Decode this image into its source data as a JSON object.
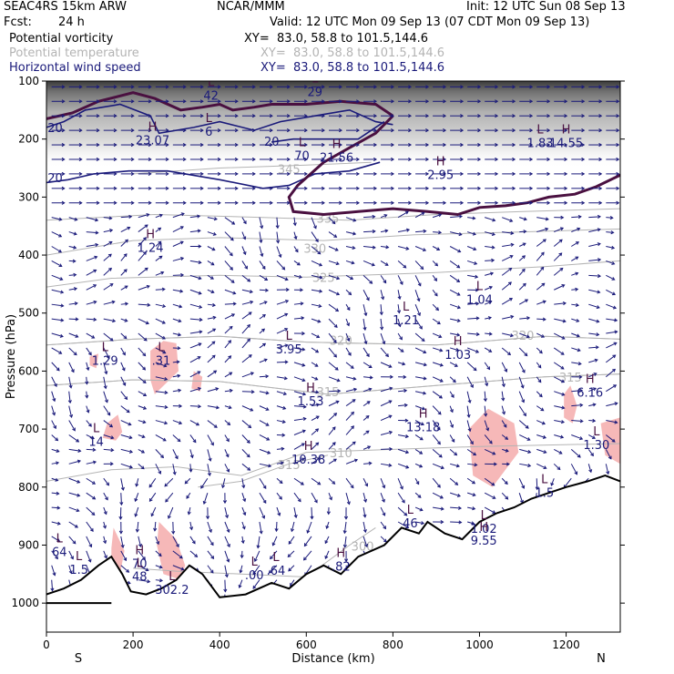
{
  "header": {
    "model": "SEAC4RS 15km ARW",
    "org": "NCAR/MMM",
    "init": "Init: 12 UTC Sun 08 Sep 13",
    "fcst_label": "Fcst:",
    "fcst_value": "24 h",
    "valid": "Valid: 12 UTC Mon 09 Sep 13 (07 CDT Mon 09 Sep 13)",
    "fields": [
      {
        "name": "Potential vorticity",
        "xy": "XY=  83.0, 58.8 to 101.5,144.6",
        "color": "#000000"
      },
      {
        "name": "Potential temperature",
        "xy": "XY=  83.0, 58.8 to 101.5,144.6",
        "color": "#b4b4b4"
      },
      {
        "name": "Horizontal wind speed",
        "xy": "XY=  83.0, 58.8 to 101.5,144.6",
        "color": "#1a1a7a"
      }
    ]
  },
  "chart_data": {
    "type": "cross-section",
    "xlabel": "Distance (km)",
    "ylabel": "Pressure (hPa)",
    "xlim": [
      0,
      1325
    ],
    "ylim": [
      1050,
      100
    ],
    "x_ticks": [
      "0",
      "200",
      "400",
      "600",
      "800",
      "1000",
      "1200"
    ],
    "y_ticks": [
      "100",
      "200",
      "300",
      "400",
      "500",
      "600",
      "700",
      "800",
      "900",
      "1000"
    ],
    "end_labels": {
      "left": "S",
      "right": "N"
    },
    "colors": {
      "wind": "#1a1a7a",
      "theta": "#b4b4b4",
      "pv_thick": "#4a1040",
      "pink": "#f6b8b8",
      "terrain": "#000000"
    },
    "theta_contours": [
      {
        "label": "330",
        "points": [
          [
            0,
            400
          ],
          [
            200,
            375
          ],
          [
            400,
            370
          ],
          [
            640,
            375
          ],
          [
            850,
            365
          ],
          [
            1100,
            360
          ],
          [
            1325,
            355
          ]
        ],
        "label_at": [
          620,
          390
        ]
      },
      {
        "label": "325",
        "points": [
          [
            0,
            455
          ],
          [
            150,
            440
          ],
          [
            400,
            435
          ],
          [
            600,
            438
          ],
          [
            900,
            430
          ],
          [
            1150,
            420
          ],
          [
            1325,
            410
          ]
        ],
        "label_at": [
          640,
          440
        ]
      },
      {
        "label": "320",
        "points": [
          [
            0,
            555
          ],
          [
            200,
            545
          ],
          [
            400,
            540
          ],
          [
            600,
            550
          ],
          [
            900,
            555
          ],
          [
            1150,
            540
          ],
          [
            1325,
            545
          ]
        ],
        "label_at": [
          1100,
          540
        ]
      },
      {
        "label": "320",
        "points": [
          [
            0,
            555
          ],
          [
            200,
            545
          ],
          [
            400,
            540
          ],
          [
            600,
            550
          ],
          [
            900,
            555
          ],
          [
            1150,
            540
          ],
          [
            1325,
            545
          ]
        ],
        "label_at": [
          680,
          548
        ]
      },
      {
        "label": "315",
        "points": [
          [
            0,
            625
          ],
          [
            200,
            615
          ],
          [
            400,
            618
          ],
          [
            650,
            640
          ],
          [
            900,
            625
          ],
          [
            1150,
            610
          ],
          [
            1325,
            605
          ]
        ],
        "label_at": [
          650,
          637
        ]
      },
      {
        "label": "315",
        "points": [
          [
            0,
            625
          ],
          [
            200,
            615
          ],
          [
            400,
            618
          ],
          [
            650,
            640
          ],
          [
            900,
            625
          ],
          [
            1150,
            610
          ],
          [
            1325,
            605
          ]
        ],
        "label_at": [
          1210,
          612
        ]
      },
      {
        "label": "310",
        "points": [
          [
            0,
            790
          ],
          [
            150,
            770
          ],
          [
            300,
            765
          ],
          [
            450,
            780
          ],
          [
            600,
            740
          ],
          [
            800,
            735
          ],
          [
            1000,
            730
          ],
          [
            1325,
            725
          ]
        ],
        "label_at": [
          680,
          742
        ]
      },
      {
        "label": "315",
        "points": [
          [
            350,
            800
          ],
          [
            450,
            790
          ],
          [
            560,
            760
          ],
          [
            650,
            745
          ]
        ],
        "label_at": [
          560,
          763
        ]
      },
      {
        "label": "345",
        "points": [
          [
            200,
            260
          ],
          [
            400,
            250
          ],
          [
            600,
            245
          ],
          [
            750,
            240
          ]
        ],
        "label_at": [
          560,
          253
        ]
      },
      {
        "label": "335",
        "points": [
          [
            0,
            340
          ],
          [
            250,
            330
          ],
          [
            500,
            335
          ],
          [
            700,
            340
          ],
          [
            900,
            330
          ],
          [
            1100,
            325
          ],
          [
            1325,
            320
          ]
        ],
        "label_at": [
          650,
          338
        ]
      },
      {
        "label": "300",
        "points": [
          [
            200,
            940
          ],
          [
            300,
            945
          ],
          [
            450,
            950
          ],
          [
            600,
            955
          ],
          [
            700,
            900
          ],
          [
            760,
            870
          ]
        ],
        "label_at": [
          730,
          903
        ]
      }
    ],
    "pv_contours": [
      {
        "label": "20",
        "points": [
          [
            0,
            180
          ],
          [
            40,
            170
          ],
          [
            90,
            150
          ],
          [
            170,
            140
          ],
          [
            240,
            160
          ],
          [
            260,
            190
          ],
          [
            340,
            180
          ],
          [
            400,
            170
          ],
          [
            480,
            185
          ],
          [
            540,
            170
          ],
          [
            620,
            160
          ],
          [
            700,
            150
          ],
          [
            760,
            170
          ],
          [
            800,
            175
          ]
        ],
        "label_at": [
          20,
          182
        ]
      },
      {
        "label": "20",
        "points": [
          [
            0,
            275
          ],
          [
            50,
            270
          ],
          [
            110,
            260
          ],
          [
            190,
            255
          ],
          [
            280,
            255
          ],
          [
            400,
            270
          ],
          [
            500,
            285
          ],
          [
            560,
            280
          ],
          [
            620,
            260
          ],
          [
            700,
            255
          ],
          [
            770,
            240
          ]
        ],
        "label_at": [
          20,
          268
        ]
      },
      {
        "label": "20",
        "points": [
          [
            520,
            205
          ],
          [
            570,
            200
          ],
          [
            640,
            200
          ],
          [
            720,
            200
          ],
          [
            780,
            170
          ]
        ],
        "label_at": [
          520,
          205
        ]
      }
    ],
    "pv_thick": [
      {
        "points": [
          [
            0,
            165
          ],
          [
            60,
            155
          ],
          [
            120,
            135
          ],
          [
            200,
            120
          ],
          [
            250,
            130
          ],
          [
            310,
            150
          ],
          [
            360,
            145
          ],
          [
            400,
            140
          ],
          [
            430,
            150
          ],
          [
            480,
            145
          ],
          [
            520,
            140
          ],
          [
            600,
            140
          ],
          [
            680,
            135
          ],
          [
            760,
            140
          ],
          [
            800,
            160
          ]
        ]
      },
      {
        "points": [
          [
            800,
            160
          ],
          [
            760,
            190
          ],
          [
            700,
            215
          ],
          [
            640,
            240
          ],
          [
            580,
            280
          ],
          [
            560,
            300
          ],
          [
            570,
            325
          ],
          [
            640,
            330
          ],
          [
            720,
            325
          ],
          [
            800,
            320
          ],
          [
            880,
            325
          ],
          [
            950,
            330
          ],
          [
            1000,
            318
          ],
          [
            1060,
            315
          ],
          [
            1110,
            310
          ],
          [
            1160,
            300
          ],
          [
            1220,
            295
          ],
          [
            1270,
            282
          ],
          [
            1325,
            262
          ]
        ]
      }
    ],
    "pink_regions": [
      [
        [
          240,
          565
        ],
        [
          270,
          548
        ],
        [
          300,
          552
        ],
        [
          305,
          600
        ],
        [
          250,
          640
        ],
        [
          240,
          615
        ]
      ],
      [
        [
          140,
          690
        ],
        [
          165,
          675
        ],
        [
          175,
          705
        ],
        [
          160,
          720
        ],
        [
          130,
          715
        ]
      ],
      [
        [
          975,
          700
        ],
        [
          1020,
          665
        ],
        [
          1080,
          690
        ],
        [
          1090,
          740
        ],
        [
          1030,
          800
        ],
        [
          985,
          780
        ]
      ],
      [
        [
          1195,
          640
        ],
        [
          1210,
          625
        ],
        [
          1225,
          660
        ],
        [
          1215,
          690
        ],
        [
          1195,
          680
        ]
      ],
      [
        [
          1280,
          690
        ],
        [
          1325,
          680
        ],
        [
          1325,
          760
        ],
        [
          1290,
          745
        ]
      ],
      [
        [
          260,
          860
        ],
        [
          300,
          890
        ],
        [
          320,
          935
        ],
        [
          310,
          960
        ],
        [
          270,
          950
        ],
        [
          255,
          900
        ]
      ],
      [
        [
          155,
          870
        ],
        [
          180,
          910
        ],
        [
          170,
          950
        ],
        [
          150,
          960
        ],
        [
          150,
          905
        ]
      ],
      [
        [
          340,
          600
        ],
        [
          360,
          610
        ],
        [
          355,
          635
        ],
        [
          335,
          630
        ]
      ],
      [
        [
          100,
          575
        ],
        [
          120,
          570
        ],
        [
          115,
          595
        ],
        [
          100,
          590
        ]
      ]
    ],
    "terrain": [
      [
        0,
        985
      ],
      [
        40,
        975
      ],
      [
        80,
        960
      ],
      [
        120,
        935
      ],
      [
        150,
        920
      ],
      [
        175,
        950
      ],
      [
        195,
        980
      ],
      [
        230,
        985
      ],
      [
        265,
        975
      ],
      [
        300,
        960
      ],
      [
        330,
        935
      ],
      [
        360,
        950
      ],
      [
        400,
        990
      ],
      [
        460,
        985
      ],
      [
        520,
        965
      ],
      [
        560,
        975
      ],
      [
        600,
        950
      ],
      [
        640,
        935
      ],
      [
        680,
        950
      ],
      [
        720,
        920
      ],
      [
        780,
        900
      ],
      [
        820,
        870
      ],
      [
        860,
        880
      ],
      [
        880,
        860
      ],
      [
        920,
        880
      ],
      [
        960,
        890
      ],
      [
        1000,
        860
      ],
      [
        1040,
        845
      ],
      [
        1080,
        835
      ],
      [
        1120,
        820
      ],
      [
        1160,
        810
      ],
      [
        1200,
        800
      ],
      [
        1250,
        790
      ],
      [
        1290,
        780
      ],
      [
        1325,
        790
      ]
    ],
    "extrema": [
      {
        "kind": "H",
        "value": "23.07",
        "x": 245,
        "y": 195
      },
      {
        "kind": "L",
        "value": "42",
        "x": 380,
        "y": 118
      },
      {
        "kind": "L",
        "value": "29",
        "x": 620,
        "y": 112
      },
      {
        "kind": "H",
        "value": "21.56",
        "x": 670,
        "y": 225
      },
      {
        "kind": "L",
        "value": "70",
        "x": 590,
        "y": 222
      },
      {
        "kind": "L",
        "value": "6",
        "x": 375,
        "y": 180
      },
      {
        "kind": "H",
        "value": "2.95",
        "x": 910,
        "y": 255
      },
      {
        "kind": "L",
        "value": "1.83",
        "x": 1140,
        "y": 200
      },
      {
        "kind": "H",
        "value": "14.55",
        "x": 1200,
        "y": 200
      },
      {
        "kind": "H",
        "value": "1.24",
        "x": 240,
        "y": 380
      },
      {
        "kind": "L",
        "value": "1.04",
        "x": 1000,
        "y": 470
      },
      {
        "kind": "L",
        "value": "1.21",
        "x": 830,
        "y": 505
      },
      {
        "kind": "L",
        "value": "3.95",
        "x": 560,
        "y": 555
      },
      {
        "kind": "H",
        "value": "1.03",
        "x": 950,
        "y": 565
      },
      {
        "kind": "L",
        "value": "1.29",
        "x": 135,
        "y": 575
      },
      {
        "kind": "L",
        "value": ".31",
        "x": 265,
        "y": 575
      },
      {
        "kind": "H",
        "value": "6.16",
        "x": 1255,
        "y": 630
      },
      {
        "kind": "H",
        "value": "1.53",
        "x": 610,
        "y": 645
      },
      {
        "kind": "H",
        "value": "13.18",
        "x": 870,
        "y": 690
      },
      {
        "kind": "L",
        "value": "14",
        "x": 115,
        "y": 715
      },
      {
        "kind": "H",
        "value": "10.38",
        "x": 605,
        "y": 745
      },
      {
        "kind": "L",
        "value": "1.30",
        "x": 1270,
        "y": 720
      },
      {
        "kind": "L",
        "value": "1.5",
        "x": 1150,
        "y": 803
      },
      {
        "kind": "L",
        "value": "46",
        "x": 840,
        "y": 855
      },
      {
        "kind": "L",
        "value": "1.02",
        "x": 1010,
        "y": 865
      },
      {
        "kind": "H",
        "value": "9.55",
        "x": 1010,
        "y": 885
      },
      {
        "kind": "L",
        "value": "64",
        "x": 30,
        "y": 905
      },
      {
        "kind": "H",
        "value": "70",
        "x": 215,
        "y": 925
      },
      {
        "kind": "L",
        "value": "1.5",
        "x": 75,
        "y": 935
      },
      {
        "kind": "L",
        "value": "48",
        "x": 215,
        "y": 947
      },
      {
        "kind": "L",
        "value": ".00",
        "x": 480,
        "y": 945
      },
      {
        "kind": "L",
        "value": ".64",
        "x": 530,
        "y": 937
      },
      {
        "kind": "H",
        "value": ".82",
        "x": 680,
        "y": 930
      },
      {
        "kind": "L",
        "value": "302.2",
        "x": 290,
        "y": 970
      }
    ]
  }
}
